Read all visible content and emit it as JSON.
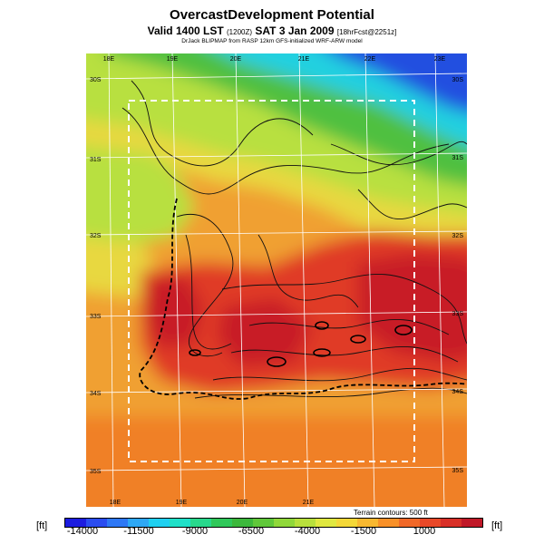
{
  "title": "OvercastDevelopment Potential",
  "subtitle": {
    "main": "Valid 1400 LST",
    "utc": "(1200Z)",
    "date": "SAT 3 Jan 2009",
    "run": "[18hrFcst@2251z]"
  },
  "credit": "DrJack BLIPMAP from RASP 12km GFS-initialized WRF-ARW model",
  "terrain_note": "Terrain contours: 500 ft",
  "unit_left": "[ft]",
  "unit_right": "[ft]",
  "lon_labels_top": [
    "18E",
    "19E",
    "20E",
    "21E",
    "22E",
    "23E"
  ],
  "lon_labels_bottom": [
    "18E",
    "19E",
    "20E",
    "21E"
  ],
  "lat_labels_left": [
    "30S",
    "31S",
    "32S",
    "33S",
    "34S",
    "35S"
  ],
  "lat_labels_right": [
    "30S",
    "31S",
    "32S",
    "33S",
    "34S",
    "35S"
  ],
  "colorbar": {
    "labels": [
      "-14000",
      "-11500",
      "-9000",
      "-6500",
      "-4000",
      "-1500",
      "1000"
    ],
    "colors": [
      "#1c1ce0",
      "#2a4cf0",
      "#2e78f5",
      "#2ea8f5",
      "#20d0f0",
      "#20e0c8",
      "#28d88c",
      "#30c85a",
      "#3cb83c",
      "#60c83a",
      "#90d83a",
      "#b8e03c",
      "#e0e840",
      "#f4d838",
      "#f8b830",
      "#f89028",
      "#f06828",
      "#e84828",
      "#d83028",
      "#c01828"
    ]
  },
  "region_colors": {
    "ocean_west": "#f0a030",
    "north_blue": "#2050e0",
    "cyan": "#20d0e0",
    "green": "#50c040",
    "yellow_green": "#b8e040",
    "yellow": "#e8d840",
    "orange": "#f08028",
    "red": "#e03a28",
    "dark_red": "#c81e28"
  }
}
